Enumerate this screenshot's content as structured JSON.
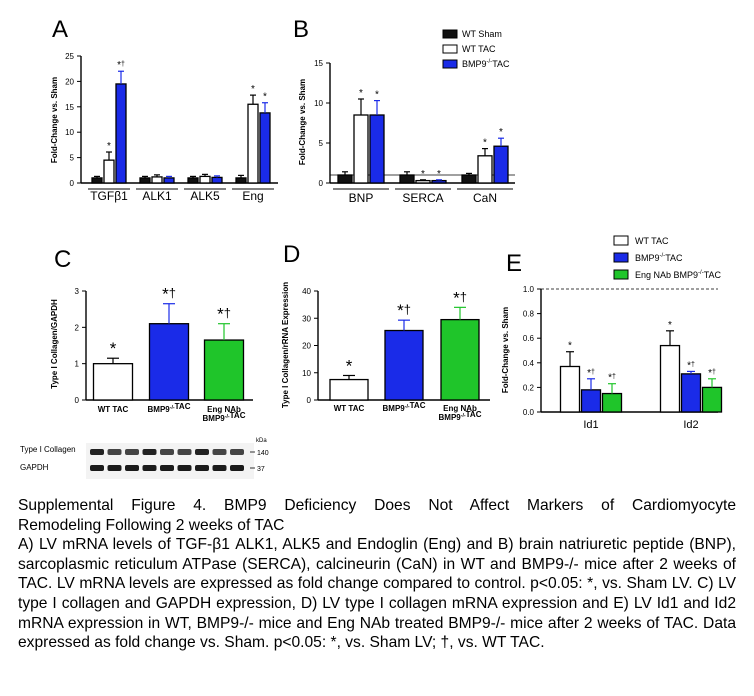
{
  "colors": {
    "sham": "#111111",
    "wt_tac": "#ffffff",
    "bmp9": "#1a2be8",
    "eng": "#1fc52a",
    "frame": "#000000"
  },
  "legend_top": [
    "WT Sham",
    "WT TAC",
    "BMP9-/-TAC"
  ],
  "legend_e": [
    "WT TAC",
    "BMP9-/-TAC",
    "Eng NAb BMP9-/-TAC"
  ],
  "blot": {
    "labels": [
      "Type I Collagen",
      "GAPDH"
    ],
    "kda": [
      "140",
      "37"
    ],
    "unit": "kDa"
  },
  "caption": {
    "title1": "Supplemental Figure 4. BMP9 Deficiency Does Not Affect Markers of Cardiomyocyte",
    "title2": "Remodeling Following 2 weeks of TAC",
    "body": "A) LV mRNA levels of TGF-β1 ALK1, ALK5 and Endoglin (Eng) and B) brain natriuretic peptide (BNP), sarcoplasmic reticulum ATPase (SERCA), calcineurin (CaN) in WT and BMP9-/- mice after 2 weeks of TAC. LV mRNA levels are expressed as fold change compared to control. p<0.05: *, vs. Sham LV. C) LV type I collagen and GAPDH expression, D) LV type I collagen mRNA expression and E) LV Id1 and Id2 mRNA expression in WT, BMP9-/- mice and Eng NAb treated  BMP9-/- mice after 2 weeks of TAC. Data expressed as fold change vs. Sham. p<0.05: *, vs. Sham LV; †, vs. WT TAC."
  },
  "chart_data": [
    {
      "panel": "A",
      "type": "bar",
      "ylabel": "Fold-Change vs. Sham",
      "ylim": [
        0,
        25
      ],
      "yticks": [
        0,
        5,
        10,
        15,
        20,
        25
      ],
      "categories": [
        "TGFβ1",
        "ALK1",
        "ALK5",
        "Eng"
      ],
      "series": [
        {
          "name": "WT Sham",
          "color": "#111111",
          "values": [
            1.0,
            1.0,
            1.0,
            1.0
          ],
          "errors": [
            0.3,
            0.3,
            0.3,
            0.5
          ],
          "marks": [
            "",
            "",
            "",
            ""
          ]
        },
        {
          "name": "WT TAC",
          "color": "#ffffff",
          "values": [
            4.5,
            1.2,
            1.3,
            15.5
          ],
          "errors": [
            1.6,
            0.4,
            0.4,
            1.8
          ],
          "marks": [
            "*",
            "",
            "",
            "*"
          ]
        },
        {
          "name": "BMP9-/-TAC",
          "color": "#1a2be8",
          "values": [
            19.5,
            1.0,
            1.1,
            13.8
          ],
          "errors": [
            2.5,
            0.3,
            0.3,
            2.0
          ],
          "marks": [
            "*†",
            "",
            "",
            "*"
          ]
        }
      ]
    },
    {
      "panel": "B",
      "type": "bar",
      "ylabel": "Fold-Change vs. Sham",
      "ylim": [
        0,
        15
      ],
      "yticks": [
        0,
        5,
        10,
        15
      ],
      "reference_line": 1,
      "categories": [
        "BNP",
        "SERCA",
        "CaN"
      ],
      "series": [
        {
          "name": "WT Sham",
          "color": "#111111",
          "values": [
            1.0,
            1.0,
            1.0
          ],
          "errors": [
            0.4,
            0.4,
            0.2
          ],
          "marks": [
            "",
            "",
            ""
          ]
        },
        {
          "name": "WT TAC",
          "color": "#ffffff",
          "values": [
            8.5,
            0.3,
            3.4
          ],
          "errors": [
            2.0,
            0.1,
            0.9
          ],
          "marks": [
            "*",
            "*",
            "*"
          ]
        },
        {
          "name": "BMP9-/-TAC",
          "color": "#1a2be8",
          "values": [
            8.5,
            0.3,
            4.6
          ],
          "errors": [
            1.8,
            0.1,
            1.0
          ],
          "marks": [
            "*",
            "*",
            "*"
          ]
        }
      ]
    },
    {
      "panel": "C",
      "type": "bar",
      "ylabel": "Type I Collagen/GAPDH",
      "ylim": [
        0,
        3
      ],
      "yticks": [
        0,
        1,
        2,
        3
      ],
      "categories": [
        "WT TAC",
        "BMP9-/-TAC",
        "Eng NAb BMP9-/-TAC"
      ],
      "colors": [
        "#ffffff",
        "#1a2be8",
        "#1fc52a"
      ],
      "values": [
        1.0,
        2.1,
        1.65
      ],
      "errors": [
        0.15,
        0.55,
        0.45
      ],
      "marks": [
        "*",
        "*†",
        "*†"
      ]
    },
    {
      "panel": "D",
      "type": "bar",
      "ylabel": "Type I Collagen/rRNA Expression",
      "ylim": [
        0,
        40
      ],
      "yticks": [
        0,
        10,
        20,
        30,
        40
      ],
      "categories": [
        "WT TAC",
        "BMP9-/-TAC",
        "Eng NAb BMP9-/-TAC"
      ],
      "colors": [
        "#ffffff",
        "#1a2be8",
        "#1fc52a"
      ],
      "values": [
        7.5,
        25.5,
        29.5
      ],
      "errors": [
        1.5,
        3.8,
        4.5
      ],
      "marks": [
        "*",
        "*†",
        "*†"
      ]
    },
    {
      "panel": "E",
      "type": "bar",
      "ylabel": "Fold-Change vs. Sham",
      "ylim": [
        0,
        1.0
      ],
      "yticks": [
        0.0,
        0.2,
        0.4,
        0.6,
        0.8,
        1.0
      ],
      "reference_line": 1.0,
      "categories": [
        "Id1",
        "Id2"
      ],
      "series": [
        {
          "name": "WT TAC",
          "color": "#ffffff",
          "values": [
            0.37,
            0.54
          ],
          "errors": [
            0.12,
            0.12
          ],
          "marks": [
            "*",
            "*"
          ]
        },
        {
          "name": "BMP9-/-TAC",
          "color": "#1a2be8",
          "values": [
            0.18,
            0.31
          ],
          "errors": [
            0.09,
            0.02
          ],
          "marks": [
            "*†",
            "*†"
          ]
        },
        {
          "name": "Eng NAb BMP9-/-TAC",
          "color": "#1fc52a",
          "values": [
            0.15,
            0.2
          ],
          "errors": [
            0.08,
            0.07
          ],
          "marks": [
            "*†",
            "*†"
          ]
        }
      ]
    }
  ]
}
